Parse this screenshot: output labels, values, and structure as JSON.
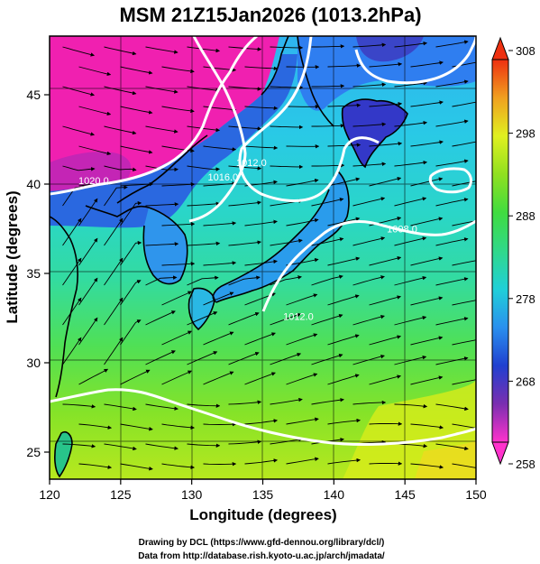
{
  "title": "MSM 21Z15Jan2026 (1013.2hPa)",
  "xlabel": "Longitude (degrees)",
  "ylabel": "Latitude  (degrees)",
  "xticks": [
    "120",
    "125",
    "130",
    "135",
    "140",
    "145",
    "150"
  ],
  "yticks": [
    "25",
    "30",
    "35",
    "40",
    "45"
  ],
  "colorbar": {
    "ticks": [
      "308",
      "298",
      "288",
      "278",
      "268",
      "258"
    ],
    "min": 258,
    "max": 308
  },
  "contours": [
    {
      "label": "1020.0",
      "lon": 123.1,
      "lat": 40.0
    },
    {
      "label": "1016.0",
      "lon": 132.2,
      "lat": 40.2
    },
    {
      "label": "1012.0",
      "lon": 134.2,
      "lat": 41.0
    },
    {
      "label": "1008.0",
      "lon": 144.8,
      "lat": 37.3
    },
    {
      "label": "1012.0",
      "lon": 137.5,
      "lat": 32.4
    }
  ],
  "credits": {
    "line1": "Drawing by DCL (https://www.gfd-dennou.org/library/dcl/)",
    "line2": "Data from http://database.rish.kyoto-u.ac.jp/arch/jmadata/"
  }
}
